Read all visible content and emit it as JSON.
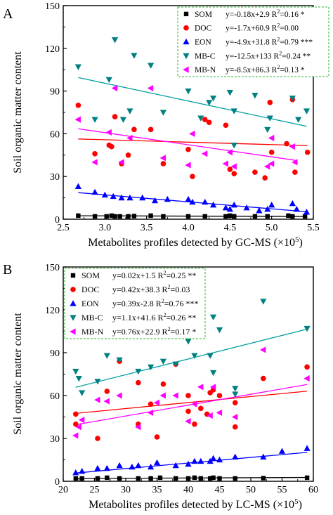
{
  "chart_data": [
    {
      "type": "scatter",
      "panel_label": "A",
      "xlabel": "Metabolites profiles detected by GC-MS (×10",
      "xlabel_exp": "5",
      "xlabel_close": ")",
      "ylabel": "Soil organic matter content",
      "xlim": [
        2.5,
        5.5
      ],
      "ylim": [
        0,
        150
      ],
      "xticks": [
        "2.5",
        "3.0",
        "3.5",
        "4.0",
        "4.5",
        "5.0",
        "5.5"
      ],
      "yticks": [
        "0",
        "30",
        "60",
        "90",
        "120",
        "150"
      ],
      "xtick_values": [
        2.5,
        3.0,
        3.5,
        4.0,
        4.5,
        5.0,
        5.5
      ],
      "ytick_values": [
        0,
        30,
        60,
        90,
        120,
        150
      ],
      "grid": false,
      "legend_position": "top-right",
      "series": [
        {
          "name": "SOM",
          "marker": "square",
          "color": "#000000",
          "fit_color": "#000000",
          "equation": "y=-0.18x+2.9 R",
          "r2": "=0.16 *",
          "fit": [
            -0.18,
            2.9
          ],
          "points": [
            [
              2.68,
              2.5
            ],
            [
              2.88,
              2
            ],
            [
              3.02,
              2
            ],
            [
              3.08,
              2.5
            ],
            [
              3.12,
              2
            ],
            [
              3.18,
              2
            ],
            [
              3.28,
              2
            ],
            [
              3.35,
              2.2
            ],
            [
              3.55,
              2.5
            ],
            [
              3.7,
              2
            ],
            [
              4.0,
              2
            ],
            [
              4.2,
              2
            ],
            [
              4.45,
              2
            ],
            [
              4.5,
              2.5
            ],
            [
              4.55,
              2
            ],
            [
              4.8,
              2
            ],
            [
              4.95,
              2
            ],
            [
              5.2,
              2.5
            ],
            [
              5.25,
              2
            ],
            [
              5.4,
              2
            ]
          ]
        },
        {
          "name": "DOC",
          "marker": "circle",
          "color": "#ff0000",
          "fit_color": "#ff0000",
          "equation": "y=-1.7x+60.9 R",
          "r2": "=0.00",
          "fit": [
            -1.7,
            60.9
          ],
          "points": [
            [
              2.68,
              80
            ],
            [
              2.88,
              46
            ],
            [
              3.05,
              52
            ],
            [
              3.08,
              51
            ],
            [
              3.12,
              72
            ],
            [
              3.2,
              39
            ],
            [
              3.28,
              45
            ],
            [
              3.35,
              63
            ],
            [
              3.55,
              63
            ],
            [
              3.7,
              39
            ],
            [
              4.0,
              49
            ],
            [
              4.05,
              30
            ],
            [
              4.2,
              70
            ],
            [
              4.25,
              68
            ],
            [
              4.45,
              66
            ],
            [
              4.5,
              35
            ],
            [
              4.55,
              32
            ],
            [
              4.8,
              33
            ],
            [
              4.92,
              29
            ],
            [
              4.98,
              82
            ],
            [
              5.0,
              47
            ],
            [
              5.18,
              53
            ],
            [
              5.25,
              84
            ],
            [
              5.28,
              33
            ],
            [
              5.43,
              47
            ]
          ]
        },
        {
          "name": "EON",
          "marker": "triangle-up",
          "color": "#0000ff",
          "fit_color": "#0000ff",
          "equation": "y=-4.9x+31.8 R",
          "r2": "=0.79 ***",
          "fit": [
            -4.9,
            31.8
          ],
          "points": [
            [
              2.68,
              23
            ],
            [
              2.88,
              19
            ],
            [
              3.0,
              17
            ],
            [
              3.1,
              16
            ],
            [
              3.2,
              15
            ],
            [
              3.3,
              15
            ],
            [
              3.45,
              15
            ],
            [
              3.6,
              13
            ],
            [
              3.75,
              14
            ],
            [
              4.0,
              14
            ],
            [
              4.05,
              12
            ],
            [
              4.2,
              12
            ],
            [
              4.3,
              10
            ],
            [
              4.45,
              8
            ],
            [
              4.5,
              7
            ],
            [
              4.55,
              10
            ],
            [
              4.7,
              8
            ],
            [
              4.85,
              6
            ],
            [
              4.95,
              7
            ],
            [
              5.0,
              10
            ],
            [
              5.25,
              11
            ],
            [
              5.3,
              7
            ],
            [
              5.42,
              5
            ]
          ]
        },
        {
          "name": "MB-C",
          "marker": "triangle-down",
          "color": "#008080",
          "fit_color": "#00a0a0",
          "equation": "y=-12.5x+133 R",
          "r2": "=0.24 **",
          "fit": [
            -12.5,
            133
          ],
          "points": [
            [
              2.68,
              107
            ],
            [
              2.88,
              70
            ],
            [
              3.05,
              98
            ],
            [
              3.12,
              126
            ],
            [
              3.22,
              70
            ],
            [
              3.3,
              76
            ],
            [
              3.35,
              115
            ],
            [
              3.55,
              108
            ],
            [
              3.7,
              75
            ],
            [
              4.0,
              90
            ],
            [
              4.05,
              106
            ],
            [
              4.15,
              71
            ],
            [
              4.25,
              82
            ],
            [
              4.3,
              85
            ],
            [
              4.5,
              89
            ],
            [
              4.55,
              76
            ],
            [
              4.8,
              87
            ],
            [
              4.95,
              63
            ],
            [
              4.98,
              71
            ],
            [
              5.25,
              85
            ],
            [
              5.32,
              70
            ],
            [
              5.42,
              76
            ],
            [
              4.55,
              52
            ]
          ]
        },
        {
          "name": "MB-N",
          "marker": "triangle-left",
          "color": "#ff00ff",
          "fit_color": "#ff00ff",
          "equation": "y=-8.5x+86.3 R",
          "r2": "=0.13 *",
          "fit": [
            -8.5,
            86.3
          ],
          "points": [
            [
              2.68,
              70
            ],
            [
              2.88,
              40
            ],
            [
              3.05,
              61
            ],
            [
              3.12,
              92
            ],
            [
              3.2,
              40
            ],
            [
              3.3,
              57
            ],
            [
              3.55,
              92
            ],
            [
              3.7,
              43
            ],
            [
              4.0,
              38
            ],
            [
              4.05,
              60
            ],
            [
              4.2,
              46
            ],
            [
              4.45,
              39
            ],
            [
              4.5,
              47
            ],
            [
              4.55,
              37
            ],
            [
              4.95,
              37
            ],
            [
              5.0,
              39
            ],
            [
              5.0,
              57
            ],
            [
              5.25,
              51
            ],
            [
              5.28,
              40
            ]
          ]
        }
      ]
    },
    {
      "type": "scatter",
      "panel_label": "B",
      "xlabel": "Metabolites profiles detected by LC-MS (×10",
      "xlabel_exp": "5",
      "xlabel_close": ")",
      "ylabel": "Soil organic matter content",
      "xlim": [
        20,
        60
      ],
      "ylim": [
        0,
        150
      ],
      "xticks": [
        "20",
        "25",
        "30",
        "35",
        "40",
        "45",
        "50",
        "55",
        "60"
      ],
      "yticks": [
        "0",
        "30",
        "60",
        "90",
        "120",
        "150"
      ],
      "xtick_values": [
        20,
        25,
        30,
        35,
        40,
        45,
        50,
        55,
        60
      ],
      "ytick_values": [
        0,
        30,
        60,
        90,
        120,
        150
      ],
      "grid": false,
      "legend_position": "top-left",
      "series": [
        {
          "name": "SOM",
          "marker": "square",
          "color": "#000000",
          "fit_color": "#000000",
          "equation": "y=0.02x+1.5 R",
          "r2": "=0.25 **",
          "fit": [
            0.02,
            1.5
          ],
          "points": [
            [
              22,
              2
            ],
            [
              23,
              2
            ],
            [
              25.5,
              2
            ],
            [
              27,
              2.5
            ],
            [
              29,
              2
            ],
            [
              32,
              2
            ],
            [
              34,
              2
            ],
            [
              35.5,
              2.5
            ],
            [
              38,
              2
            ],
            [
              40,
              2
            ],
            [
              41,
              2.5
            ],
            [
              42,
              2
            ],
            [
              43.5,
              2
            ],
            [
              44,
              2.5
            ],
            [
              45,
              2
            ],
            [
              47.5,
              2
            ],
            [
              52,
              2.2
            ],
            [
              59,
              2.5
            ]
          ]
        },
        {
          "name": "DOC",
          "marker": "circle",
          "color": "#ff0000",
          "fit_color": "#ff0000",
          "equation": "y=0.42x+38.3 R",
          "r2": "=0.03",
          "fit": [
            0.42,
            38.3
          ],
          "points": [
            [
              22,
              47
            ],
            [
              22,
              40
            ],
            [
              25.5,
              30
            ],
            [
              27,
              63
            ],
            [
              29,
              84
            ],
            [
              32,
              69
            ],
            [
              32,
              40
            ],
            [
              34,
              54
            ],
            [
              35,
              31
            ],
            [
              36,
              68
            ],
            [
              38,
              82
            ],
            [
              40,
              60
            ],
            [
              40,
              49
            ],
            [
              41,
              40
            ],
            [
              42,
              51
            ],
            [
              43,
              47
            ],
            [
              43.5,
              62
            ],
            [
              44,
              64
            ],
            [
              45,
              60
            ],
            [
              47.5,
              38
            ],
            [
              47.5,
              55
            ],
            [
              52,
              72
            ],
            [
              59,
              80
            ]
          ]
        },
        {
          "name": "EON",
          "marker": "triangle-up",
          "color": "#0000ff",
          "fit_color": "#0000ff",
          "equation": "y=0.39x-2.8 R",
          "r2": "=0.76 ***",
          "fit": [
            0.39,
            -2.8
          ],
          "points": [
            [
              22,
              6
            ],
            [
              23,
              7
            ],
            [
              25.5,
              9
            ],
            [
              27,
              9
            ],
            [
              29,
              11
            ],
            [
              31,
              10
            ],
            [
              32,
              11
            ],
            [
              34,
              10
            ],
            [
              35,
              13
            ],
            [
              38,
              11
            ],
            [
              40,
              12
            ],
            [
              41,
              14
            ],
            [
              42,
              14
            ],
            [
              43.5,
              14
            ],
            [
              44,
              16
            ],
            [
              45,
              15
            ],
            [
              47.5,
              17
            ],
            [
              52,
              17
            ],
            [
              55,
              21
            ],
            [
              59,
              23
            ]
          ]
        },
        {
          "name": "MB-C",
          "marker": "triangle-down",
          "color": "#008080",
          "fit_color": "#00a0a0",
          "equation": "y=1.1x+41.6 R",
          "r2": "=0.26 **",
          "fit": [
            1.1,
            41.6
          ],
          "points": [
            [
              22,
              77
            ],
            [
              22.5,
              72
            ],
            [
              23,
              62
            ],
            [
              25.5,
              70
            ],
            [
              27,
              88
            ],
            [
              29,
              85
            ],
            [
              32,
              77
            ],
            [
              34,
              80
            ],
            [
              36,
              84
            ],
            [
              38,
              82
            ],
            [
              40,
              120
            ],
            [
              40,
              98
            ],
            [
              41,
              88
            ],
            [
              42,
              106
            ],
            [
              43.5,
              88
            ],
            [
              44,
              76
            ],
            [
              44,
              115
            ],
            [
              45,
              106
            ],
            [
              47.5,
              65
            ],
            [
              47.5,
              61
            ],
            [
              52,
              126
            ],
            [
              59,
              107
            ]
          ]
        },
        {
          "name": "MB-N",
          "marker": "triangle-left",
          "color": "#ff00ff",
          "fit_color": "#ff00ff",
          "equation": "y=0.76x+22.9 R",
          "r2": "=0.17 *",
          "fit": [
            0.76,
            22.9
          ],
          "points": [
            [
              22,
              32
            ],
            [
              22.5,
              38
            ],
            [
              23,
              43
            ],
            [
              25.5,
              57
            ],
            [
              27,
              56
            ],
            [
              29,
              60
            ],
            [
              32,
              38
            ],
            [
              34,
              48
            ],
            [
              35,
              55
            ],
            [
              36,
              60
            ],
            [
              38,
              60
            ],
            [
              40,
              42
            ],
            [
              41,
              54
            ],
            [
              42,
              66
            ],
            [
              43.5,
              46
            ],
            [
              44,
              66
            ],
            [
              45,
              48
            ],
            [
              47.5,
              45
            ],
            [
              52,
              92
            ],
            [
              59,
              72
            ]
          ]
        }
      ]
    }
  ]
}
